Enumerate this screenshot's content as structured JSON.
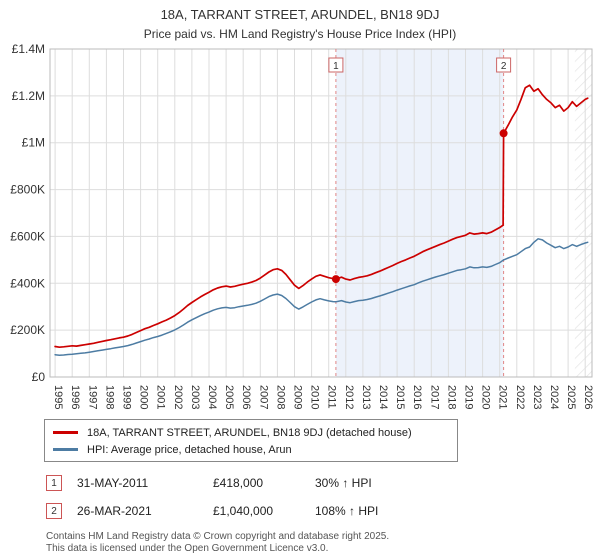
{
  "chart_data": {
    "type": "line",
    "title": "18A, TARRANT STREET, ARUNDEL, BN18 9DJ",
    "subtitle": "Price paid vs. HM Land Registry's House Price Index (HPI)",
    "y_unit": "GBP thousands",
    "xlim": [
      1994.7,
      2026.4
    ],
    "ylim": [
      0,
      1400
    ],
    "grid": true,
    "legend_position": "bottom",
    "x_ticks": [
      1995,
      1996,
      1997,
      1998,
      1999,
      2000,
      2001,
      2002,
      2003,
      2004,
      2005,
      2006,
      2007,
      2008,
      2009,
      2010,
      2011,
      2012,
      2013,
      2014,
      2015,
      2016,
      2017,
      2018,
      2019,
      2020,
      2021,
      2022,
      2023,
      2024,
      2025,
      2026
    ],
    "y_ticks": [
      {
        "v": 0,
        "label": "£0"
      },
      {
        "v": 200,
        "label": "£200K"
      },
      {
        "v": 400,
        "label": "£400K"
      },
      {
        "v": 600,
        "label": "£600K"
      },
      {
        "v": 800,
        "label": "£800K"
      },
      {
        "v": 1000,
        "label": "£1M"
      },
      {
        "v": 1200,
        "label": "£1.2M"
      },
      {
        "v": 1400,
        "label": "£1.4M"
      }
    ],
    "colors": {
      "shade": "#edf2fb",
      "dashed": "#e08585",
      "grid": "#dddddd",
      "border": "#bbbbbb",
      "dot": "#cc0000",
      "hatch": "#d8d8d8"
    },
    "shaded_region": [
      2011.42,
      2021.23
    ],
    "hatched_region": [
      2025.4,
      2026.4
    ],
    "series": [
      {
        "name": "18A, TARRANT STREET, ARUNDEL, BN18 9DJ (detached house)",
        "color": "#cc0000",
        "width": 1.7,
        "points": [
          [
            1995,
            130
          ],
          [
            1995.25,
            127
          ],
          [
            1995.5,
            129
          ],
          [
            1995.75,
            131
          ],
          [
            1996,
            133
          ],
          [
            1996.25,
            132
          ],
          [
            1996.5,
            135
          ],
          [
            1996.75,
            138
          ],
          [
            1997,
            141
          ],
          [
            1997.25,
            144
          ],
          [
            1997.5,
            148
          ],
          [
            1997.75,
            152
          ],
          [
            1998,
            156
          ],
          [
            1998.25,
            159
          ],
          [
            1998.5,
            163
          ],
          [
            1998.75,
            167
          ],
          [
            1999,
            170
          ],
          [
            1999.25,
            175
          ],
          [
            1999.5,
            182
          ],
          [
            1999.75,
            190
          ],
          [
            2000,
            198
          ],
          [
            2000.25,
            206
          ],
          [
            2000.5,
            212
          ],
          [
            2000.75,
            220
          ],
          [
            2001,
            227
          ],
          [
            2001.25,
            235
          ],
          [
            2001.5,
            243
          ],
          [
            2001.75,
            252
          ],
          [
            2002,
            262
          ],
          [
            2002.25,
            275
          ],
          [
            2002.5,
            290
          ],
          [
            2002.75,
            305
          ],
          [
            2003,
            318
          ],
          [
            2003.25,
            330
          ],
          [
            2003.5,
            342
          ],
          [
            2003.75,
            352
          ],
          [
            2004,
            362
          ],
          [
            2004.25,
            372
          ],
          [
            2004.5,
            380
          ],
          [
            2004.75,
            385
          ],
          [
            2005,
            388
          ],
          [
            2005.25,
            384
          ],
          [
            2005.5,
            387
          ],
          [
            2005.75,
            392
          ],
          [
            2006,
            396
          ],
          [
            2006.25,
            400
          ],
          [
            2006.5,
            405
          ],
          [
            2006.75,
            412
          ],
          [
            2007,
            422
          ],
          [
            2007.25,
            435
          ],
          [
            2007.5,
            448
          ],
          [
            2007.75,
            458
          ],
          [
            2008,
            462
          ],
          [
            2008.25,
            455
          ],
          [
            2008.5,
            438
          ],
          [
            2008.75,
            415
          ],
          [
            2009,
            392
          ],
          [
            2009.25,
            378
          ],
          [
            2009.5,
            390
          ],
          [
            2009.75,
            405
          ],
          [
            2010,
            418
          ],
          [
            2010.25,
            430
          ],
          [
            2010.5,
            436
          ],
          [
            2010.75,
            430
          ],
          [
            2011,
            424
          ],
          [
            2011.25,
            420
          ],
          [
            2011.42,
            418
          ],
          [
            2011.75,
            426
          ],
          [
            2012,
            418
          ],
          [
            2012.25,
            414
          ],
          [
            2012.5,
            420
          ],
          [
            2012.75,
            425
          ],
          [
            2013,
            428
          ],
          [
            2013.25,
            432
          ],
          [
            2013.5,
            438
          ],
          [
            2013.75,
            445
          ],
          [
            2014,
            452
          ],
          [
            2014.25,
            460
          ],
          [
            2014.5,
            468
          ],
          [
            2014.75,
            476
          ],
          [
            2015,
            485
          ],
          [
            2015.25,
            493
          ],
          [
            2015.5,
            500
          ],
          [
            2015.75,
            508
          ],
          [
            2016,
            515
          ],
          [
            2016.25,
            525
          ],
          [
            2016.5,
            535
          ],
          [
            2016.75,
            543
          ],
          [
            2017,
            550
          ],
          [
            2017.25,
            558
          ],
          [
            2017.5,
            565
          ],
          [
            2017.75,
            572
          ],
          [
            2018,
            580
          ],
          [
            2018.25,
            588
          ],
          [
            2018.5,
            595
          ],
          [
            2018.75,
            600
          ],
          [
            2019,
            605
          ],
          [
            2019.25,
            615
          ],
          [
            2019.5,
            610
          ],
          [
            2019.75,
            612
          ],
          [
            2020,
            615
          ],
          [
            2020.25,
            612
          ],
          [
            2020.5,
            618
          ],
          [
            2020.75,
            628
          ],
          [
            2021,
            638
          ],
          [
            2021.2,
            648
          ],
          [
            2021.23,
            1040
          ],
          [
            2021.5,
            1075
          ],
          [
            2021.75,
            1110
          ],
          [
            2022,
            1140
          ],
          [
            2022.25,
            1185
          ],
          [
            2022.5,
            1235
          ],
          [
            2022.75,
            1245
          ],
          [
            2023,
            1220
          ],
          [
            2023.25,
            1230
          ],
          [
            2023.5,
            1205
          ],
          [
            2023.75,
            1185
          ],
          [
            2024,
            1170
          ],
          [
            2024.25,
            1150
          ],
          [
            2024.5,
            1160
          ],
          [
            2024.75,
            1135
          ],
          [
            2025,
            1150
          ],
          [
            2025.25,
            1175
          ],
          [
            2025.5,
            1155
          ],
          [
            2025.75,
            1170
          ],
          [
            2026,
            1185
          ],
          [
            2026.15,
            1190
          ]
        ]
      },
      {
        "name": "HPI: Average price, detached house, Arun",
        "color": "#4d7ca3",
        "width": 1.5,
        "points": [
          [
            1995,
            95
          ],
          [
            1995.25,
            93
          ],
          [
            1995.5,
            94
          ],
          [
            1995.75,
            96
          ],
          [
            1996,
            97
          ],
          [
            1996.25,
            99
          ],
          [
            1996.5,
            101
          ],
          [
            1996.75,
            103
          ],
          [
            1997,
            106
          ],
          [
            1997.25,
            109
          ],
          [
            1997.5,
            112
          ],
          [
            1997.75,
            115
          ],
          [
            1998,
            118
          ],
          [
            1998.25,
            121
          ],
          [
            1998.5,
            124
          ],
          [
            1998.75,
            127
          ],
          [
            1999,
            130
          ],
          [
            1999.25,
            134
          ],
          [
            1999.5,
            139
          ],
          [
            1999.75,
            145
          ],
          [
            2000,
            151
          ],
          [
            2000.25,
            157
          ],
          [
            2000.5,
            162
          ],
          [
            2000.75,
            168
          ],
          [
            2001,
            173
          ],
          [
            2001.25,
            179
          ],
          [
            2001.5,
            186
          ],
          [
            2001.75,
            193
          ],
          [
            2002,
            201
          ],
          [
            2002.25,
            211
          ],
          [
            2002.5,
            222
          ],
          [
            2002.75,
            234
          ],
          [
            2003,
            244
          ],
          [
            2003.25,
            253
          ],
          [
            2003.5,
            262
          ],
          [
            2003.75,
            270
          ],
          [
            2004,
            277
          ],
          [
            2004.25,
            285
          ],
          [
            2004.5,
            291
          ],
          [
            2004.75,
            295
          ],
          [
            2005,
            297
          ],
          [
            2005.25,
            294
          ],
          [
            2005.5,
            296
          ],
          [
            2005.75,
            300
          ],
          [
            2006,
            303
          ],
          [
            2006.25,
            306
          ],
          [
            2006.5,
            310
          ],
          [
            2006.75,
            315
          ],
          [
            2007,
            323
          ],
          [
            2007.25,
            333
          ],
          [
            2007.5,
            343
          ],
          [
            2007.75,
            350
          ],
          [
            2008,
            354
          ],
          [
            2008.25,
            348
          ],
          [
            2008.5,
            335
          ],
          [
            2008.75,
            318
          ],
          [
            2009,
            300
          ],
          [
            2009.25,
            290
          ],
          [
            2009.5,
            299
          ],
          [
            2009.75,
            310
          ],
          [
            2010,
            320
          ],
          [
            2010.25,
            329
          ],
          [
            2010.5,
            334
          ],
          [
            2010.75,
            329
          ],
          [
            2011,
            325
          ],
          [
            2011.25,
            322
          ],
          [
            2011.42,
            321
          ],
          [
            2011.75,
            326
          ],
          [
            2012,
            320
          ],
          [
            2012.25,
            317
          ],
          [
            2012.5,
            322
          ],
          [
            2012.75,
            326
          ],
          [
            2013,
            328
          ],
          [
            2013.25,
            331
          ],
          [
            2013.5,
            335
          ],
          [
            2013.75,
            341
          ],
          [
            2014,
            346
          ],
          [
            2014.25,
            352
          ],
          [
            2014.5,
            358
          ],
          [
            2014.75,
            364
          ],
          [
            2015,
            371
          ],
          [
            2015.25,
            377
          ],
          [
            2015.5,
            383
          ],
          [
            2015.75,
            389
          ],
          [
            2016,
            394
          ],
          [
            2016.25,
            402
          ],
          [
            2016.5,
            409
          ],
          [
            2016.75,
            415
          ],
          [
            2017,
            421
          ],
          [
            2017.25,
            427
          ],
          [
            2017.5,
            432
          ],
          [
            2017.75,
            437
          ],
          [
            2018,
            443
          ],
          [
            2018.25,
            449
          ],
          [
            2018.5,
            455
          ],
          [
            2018.75,
            458
          ],
          [
            2019,
            462
          ],
          [
            2019.25,
            470
          ],
          [
            2019.5,
            466
          ],
          [
            2019.75,
            467
          ],
          [
            2020,
            470
          ],
          [
            2020.25,
            468
          ],
          [
            2020.5,
            472
          ],
          [
            2020.75,
            480
          ],
          [
            2021,
            488
          ],
          [
            2021.23,
            500
          ],
          [
            2021.5,
            508
          ],
          [
            2021.75,
            515
          ],
          [
            2022,
            522
          ],
          [
            2022.25,
            535
          ],
          [
            2022.5,
            548
          ],
          [
            2022.75,
            555
          ],
          [
            2023,
            575
          ],
          [
            2023.25,
            590
          ],
          [
            2023.5,
            585
          ],
          [
            2023.75,
            572
          ],
          [
            2024,
            562
          ],
          [
            2024.25,
            552
          ],
          [
            2024.5,
            558
          ],
          [
            2024.75,
            548
          ],
          [
            2025,
            555
          ],
          [
            2025.25,
            565
          ],
          [
            2025.5,
            558
          ],
          [
            2025.75,
            565
          ],
          [
            2026,
            572
          ],
          [
            2026.15,
            575
          ]
        ]
      }
    ],
    "markers": [
      {
        "n": "1",
        "x": 2011.42,
        "y": 418
      },
      {
        "n": "2",
        "x": 2021.23,
        "y": 1040
      }
    ]
  },
  "annotations": [
    {
      "num": "1",
      "date": "31-MAY-2011",
      "price": "£418,000",
      "hpi": "30% ↑ HPI"
    },
    {
      "num": "2",
      "date": "26-MAR-2021",
      "price": "£1,040,000",
      "hpi": "108% ↑ HPI"
    }
  ],
  "footer": {
    "line1": "Contains HM Land Registry data © Crown copyright and database right 2025.",
    "line2": "This data is licensed under the Open Government Licence v3.0."
  }
}
